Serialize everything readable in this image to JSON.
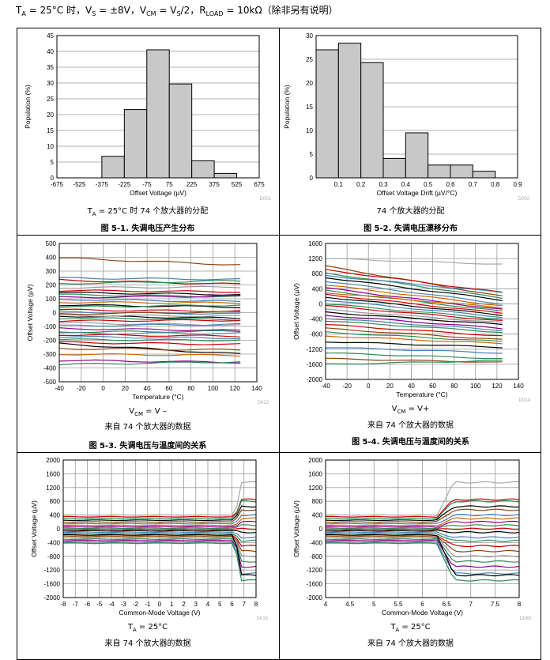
{
  "header": {
    "t_a": "T",
    "t_a_sub": "A",
    "t_a_val": " = 25°C 时，V",
    "vs_sub": "S",
    "vs_val": " = ±8V，V",
    "vcm_sub": "CM",
    "vcm_val": " = V",
    "vcm2_sub": "S",
    "vcm2_val": "/2，R",
    "rl_sub": "LOAD",
    "rl_val": " = 10kΩ（除非另有说明）"
  },
  "figures": {
    "f1": {
      "caption_a": "T",
      "caption_a_sub": "A",
      "caption_a_rest": " = 25°C 时 74 个放大器的分配",
      "title": "图 5-1. 失调电压产生分布",
      "code": "D001"
    },
    "f2": {
      "caption": "74 个放大器的分配",
      "title": "图 5-2. 失调电压漂移分布",
      "code": "D002"
    },
    "f3": {
      "caption_a": "V",
      "caption_a_sub": "CM",
      "caption_a_rest": " = V –",
      "caption_b": "来自 74 个放大器的数据",
      "title": "图 5-3. 失调电压与温度间的关系",
      "code": "D013"
    },
    "f4": {
      "caption_a": "V",
      "caption_a_sub": "CM",
      "caption_a_rest": " = V+",
      "caption_b": "来自 74 个放大器的数据",
      "title": "图 5-4. 失调电压与温度间的关系",
      "code": "D014"
    },
    "f5": {
      "caption_a": "T",
      "caption_a_sub": "A",
      "caption_a_rest": " = 25°C",
      "caption_b": "来自 74 个放大器的数据",
      "code": "D015"
    },
    "f6": {
      "caption_a": "T",
      "caption_a_sub": "A",
      "caption_a_rest": " = 25°C",
      "caption_b": "来自 74 个放大器的数据",
      "code": "D060"
    }
  },
  "chart_data": [
    {
      "id": "c1",
      "type": "bar",
      "title": "",
      "xlabel": "Offset Voltage (µV)",
      "ylabel": "Population (%)",
      "ylim": [
        0,
        45
      ],
      "yticks": [
        0,
        5,
        10,
        15,
        20,
        25,
        30,
        35,
        40,
        45
      ],
      "xlim": [
        -675,
        675
      ],
      "xticks": [
        -675,
        -525,
        -375,
        -225,
        -75,
        75,
        225,
        375,
        525,
        675
      ],
      "bins": [
        [
          -375,
          -225,
          6.8
        ],
        [
          -225,
          -75,
          21.6
        ],
        [
          -75,
          75,
          40.5
        ],
        [
          75,
          225,
          29.7
        ],
        [
          225,
          375,
          5.4
        ],
        [
          375,
          525,
          1.4
        ]
      ]
    },
    {
      "id": "c2",
      "type": "bar",
      "title": "",
      "xlabel": "Offset Voltage Drift (µV/°C)",
      "ylabel": "Population (%)",
      "ylim": [
        0,
        30
      ],
      "yticks": [
        0,
        5,
        10,
        15,
        20,
        25,
        30
      ],
      "xlim": [
        0,
        0.9
      ],
      "xticks": [
        0.1,
        0.2,
        0.3,
        0.4,
        0.5,
        0.6,
        0.7,
        0.8,
        0.9
      ],
      "bins": [
        [
          0,
          0.1,
          27
        ],
        [
          0.1,
          0.2,
          28.4
        ],
        [
          0.2,
          0.3,
          24.3
        ],
        [
          0.3,
          0.4,
          4.1
        ],
        [
          0.4,
          0.5,
          9.5
        ],
        [
          0.5,
          0.6,
          2.7
        ],
        [
          0.6,
          0.7,
          2.7
        ],
        [
          0.7,
          0.8,
          1.4
        ]
      ]
    },
    {
      "id": "c3",
      "type": "line",
      "title": "",
      "xlabel": "Temperature (°C)",
      "ylabel": "Offset Voltage (µV)",
      "ylim": [
        -500,
        500
      ],
      "yticks": [
        -500,
        -400,
        -300,
        -200,
        -100,
        0,
        100,
        200,
        300,
        400,
        500
      ],
      "xlim": [
        -40,
        140
      ],
      "xticks": [
        -40,
        -20,
        0,
        20,
        40,
        60,
        80,
        100,
        120,
        140
      ],
      "series": [
        {
          "s": 395,
          "e": 345,
          "c": "#8b4513"
        },
        {
          "s": 250,
          "e": 240,
          "c": "#4682b4"
        },
        {
          "s": 235,
          "e": 205,
          "c": "#cc0000"
        },
        {
          "s": 210,
          "e": 230,
          "c": "#2e8b57"
        },
        {
          "s": 180,
          "e": 185,
          "c": "#999999"
        },
        {
          "s": 160,
          "e": 150,
          "c": "#cc0000"
        },
        {
          "s": 145,
          "e": 130,
          "c": "#000000"
        },
        {
          "s": 130,
          "e": 115,
          "c": "#2e8b57"
        },
        {
          "s": 110,
          "e": 120,
          "c": "#8b008b"
        },
        {
          "s": 95,
          "e": 80,
          "c": "#4682b4"
        },
        {
          "s": 75,
          "e": 70,
          "c": "#cc6600"
        },
        {
          "s": 55,
          "e": 40,
          "c": "#000000"
        },
        {
          "s": 40,
          "e": 55,
          "c": "#2e8b57"
        },
        {
          "s": 20,
          "e": 10,
          "c": "#cc0000"
        },
        {
          "s": 5,
          "e": -10,
          "c": "#4682b4"
        },
        {
          "s": -10,
          "e": 5,
          "c": "#8b4513"
        },
        {
          "s": -25,
          "e": -40,
          "c": "#000000"
        },
        {
          "s": -40,
          "e": -50,
          "c": "#2e8b57"
        },
        {
          "s": -60,
          "e": -55,
          "c": "#cc0000"
        },
        {
          "s": -75,
          "e": -90,
          "c": "#999999"
        },
        {
          "s": -95,
          "e": -85,
          "c": "#4682b4"
        },
        {
          "s": -115,
          "e": -130,
          "c": "#8b008b"
        },
        {
          "s": -140,
          "e": -135,
          "c": "#2e8b57"
        },
        {
          "s": -160,
          "e": -170,
          "c": "#cc0000"
        },
        {
          "s": -175,
          "e": -185,
          "c": "#4682b4"
        },
        {
          "s": -195,
          "e": -200,
          "c": "#2e8b57"
        },
        {
          "s": -215,
          "e": -230,
          "c": "#cc0000"
        },
        {
          "s": -225,
          "e": -300,
          "c": "#000000"
        },
        {
          "s": -260,
          "e": -270,
          "c": "#8b4513"
        },
        {
          "s": -300,
          "e": -310,
          "c": "#cc6600"
        },
        {
          "s": -345,
          "e": -360,
          "c": "#8b008b"
        },
        {
          "s": -375,
          "e": -355,
          "c": "#2e8b57"
        },
        {
          "s": -150,
          "e": -150,
          "c": "#4682b4"
        },
        {
          "s": -20,
          "e": -25,
          "c": "#999999"
        }
      ]
    },
    {
      "id": "c4",
      "type": "line",
      "title": "",
      "xlabel": "Temperature (°C)",
      "ylabel": "Offset Voltage (µV)",
      "ylim": [
        -2000,
        1600
      ],
      "yticks": [
        -2000,
        -1600,
        -1200,
        -800,
        -400,
        0,
        400,
        800,
        1200,
        1600
      ],
      "xlim": [
        -40,
        140
      ],
      "xticks": [
        -40,
        -20,
        0,
        20,
        40,
        60,
        80,
        100,
        120,
        140
      ],
      "series": [
        {
          "s": 1200,
          "e": 1050,
          "c": "#aaaaaa"
        },
        {
          "s": 1000,
          "e": 200,
          "c": "#8b4513"
        },
        {
          "s": 900,
          "e": 300,
          "c": "#cc0000"
        },
        {
          "s": 820,
          "e": 150,
          "c": "#2e8b57"
        },
        {
          "s": 700,
          "e": 100,
          "c": "#000000"
        },
        {
          "s": 600,
          "e": 0,
          "c": "#4682b4"
        },
        {
          "s": 500,
          "e": -50,
          "c": "#cc6600"
        },
        {
          "s": 420,
          "e": -150,
          "c": "#8b008b"
        },
        {
          "s": 350,
          "e": -200,
          "c": "#2e8b57"
        },
        {
          "s": 250,
          "e": -250,
          "c": "#cc0000"
        },
        {
          "s": 180,
          "e": -300,
          "c": "#000000"
        },
        {
          "s": 100,
          "e": -350,
          "c": "#4682b4"
        },
        {
          "s": 0,
          "e": -400,
          "c": "#2e8b57"
        },
        {
          "s": -50,
          "e": -450,
          "c": "#cc0000"
        },
        {
          "s": -150,
          "e": -500,
          "c": "#999999"
        },
        {
          "s": -220,
          "e": -550,
          "c": "#000000"
        },
        {
          "s": -300,
          "e": -650,
          "c": "#8b008b"
        },
        {
          "s": -380,
          "e": -700,
          "c": "#4682b4"
        },
        {
          "s": -450,
          "e": -750,
          "c": "#2e8b57"
        },
        {
          "s": -550,
          "e": -850,
          "c": "#cc0000"
        },
        {
          "s": -650,
          "e": -950,
          "c": "#8b4513"
        },
        {
          "s": -750,
          "e": -1000,
          "c": "#2e8b57"
        },
        {
          "s": -850,
          "e": -1050,
          "c": "#cc6600"
        },
        {
          "s": -1000,
          "e": -1150,
          "c": "#000000"
        },
        {
          "s": -1150,
          "e": -1300,
          "c": "#4682b4"
        },
        {
          "s": -1300,
          "e": -1450,
          "c": "#2e8b57"
        },
        {
          "s": -1450,
          "e": -1550,
          "c": "#8b4513"
        },
        {
          "s": -1600,
          "e": -1500,
          "c": "#2e8b57"
        },
        {
          "s": 750,
          "e": 300,
          "c": "#4682b4"
        },
        {
          "s": 300,
          "e": -100,
          "c": "#cc6600"
        }
      ]
    },
    {
      "id": "c5",
      "type": "line",
      "title": "",
      "xlabel": "Common-Mode Voltage (V)",
      "ylabel": "Offset Voltage (µV)",
      "ylim": [
        -2000,
        2000
      ],
      "yticks": [
        -2000,
        -1600,
        -1200,
        -800,
        -400,
        0,
        400,
        800,
        1200,
        1600,
        2000
      ],
      "xlim": [
        -8,
        8
      ],
      "xticks": [
        -8,
        -7,
        -6,
        -5,
        -4,
        -3,
        -2,
        -1,
        0,
        1,
        2,
        3,
        4,
        5,
        6,
        7,
        8
      ],
      "series": [
        {
          "s": 400,
          "e": 1350,
          "c": "#aaaaaa"
        },
        {
          "s": 350,
          "e": 850,
          "c": "#cc0000"
        },
        {
          "s": 300,
          "e": 800,
          "c": "#2e8b57"
        },
        {
          "s": 250,
          "e": 650,
          "c": "#000000"
        },
        {
          "s": 200,
          "e": 550,
          "c": "#8b4513"
        },
        {
          "s": 150,
          "e": 400,
          "c": "#4682b4"
        },
        {
          "s": 100,
          "e": 300,
          "c": "#cc6600"
        },
        {
          "s": 60,
          "e": 200,
          "c": "#8b008b"
        },
        {
          "s": 20,
          "e": 100,
          "c": "#2e8b57"
        },
        {
          "s": -20,
          "e": 0,
          "c": "#cc0000"
        },
        {
          "s": -60,
          "e": -100,
          "c": "#000000"
        },
        {
          "s": -100,
          "e": -250,
          "c": "#4682b4"
        },
        {
          "s": -140,
          "e": -350,
          "c": "#2e8b57"
        },
        {
          "s": -180,
          "e": -500,
          "c": "#cc0000"
        },
        {
          "s": -220,
          "e": -650,
          "c": "#8b4513"
        },
        {
          "s": -260,
          "e": -800,
          "c": "#999999"
        },
        {
          "s": -300,
          "e": -950,
          "c": "#2e8b57"
        },
        {
          "s": -340,
          "e": -1100,
          "c": "#8b008b"
        },
        {
          "s": -380,
          "e": -1300,
          "c": "#4682b4"
        },
        {
          "s": -420,
          "e": -1500,
          "c": "#2e8b57"
        },
        {
          "s": -180,
          "e": -1350,
          "c": "#000000"
        }
      ]
    },
    {
      "id": "c6",
      "type": "line",
      "title": "",
      "xlabel": "Common-Mode Voltage (V)",
      "ylabel": "Offset Voltage (µV)",
      "ylim": [
        -2000,
        2000
      ],
      "yticks": [
        -2000,
        -1600,
        -1200,
        -800,
        -400,
        0,
        400,
        800,
        1200,
        1600,
        2000
      ],
      "xlim": [
        4,
        8
      ],
      "xticks": [
        4,
        4.5,
        5,
        5.5,
        6,
        6.5,
        7,
        7.5,
        8
      ],
      "series": [
        {
          "s": 400,
          "e": 1350,
          "c": "#aaaaaa"
        },
        {
          "s": 350,
          "e": 850,
          "c": "#cc0000"
        },
        {
          "s": 300,
          "e": 800,
          "c": "#2e8b57"
        },
        {
          "s": 250,
          "e": 650,
          "c": "#000000"
        },
        {
          "s": 200,
          "e": 550,
          "c": "#8b4513"
        },
        {
          "s": 150,
          "e": 400,
          "c": "#4682b4"
        },
        {
          "s": 100,
          "e": 300,
          "c": "#cc6600"
        },
        {
          "s": 60,
          "e": 200,
          "c": "#8b008b"
        },
        {
          "s": 20,
          "e": 100,
          "c": "#2e8b57"
        },
        {
          "s": -20,
          "e": 0,
          "c": "#cc0000"
        },
        {
          "s": -60,
          "e": -100,
          "c": "#000000"
        },
        {
          "s": -100,
          "e": -250,
          "c": "#4682b4"
        },
        {
          "s": -140,
          "e": -350,
          "c": "#2e8b57"
        },
        {
          "s": -180,
          "e": -500,
          "c": "#cc0000"
        },
        {
          "s": -220,
          "e": -650,
          "c": "#8b4513"
        },
        {
          "s": -260,
          "e": -800,
          "c": "#999999"
        },
        {
          "s": -300,
          "e": -950,
          "c": "#2e8b57"
        },
        {
          "s": -340,
          "e": -1100,
          "c": "#8b008b"
        },
        {
          "s": -380,
          "e": -1300,
          "c": "#4682b4"
        },
        {
          "s": -420,
          "e": -1500,
          "c": "#2e8b57"
        },
        {
          "s": -180,
          "e": -1350,
          "c": "#000000"
        }
      ]
    }
  ]
}
